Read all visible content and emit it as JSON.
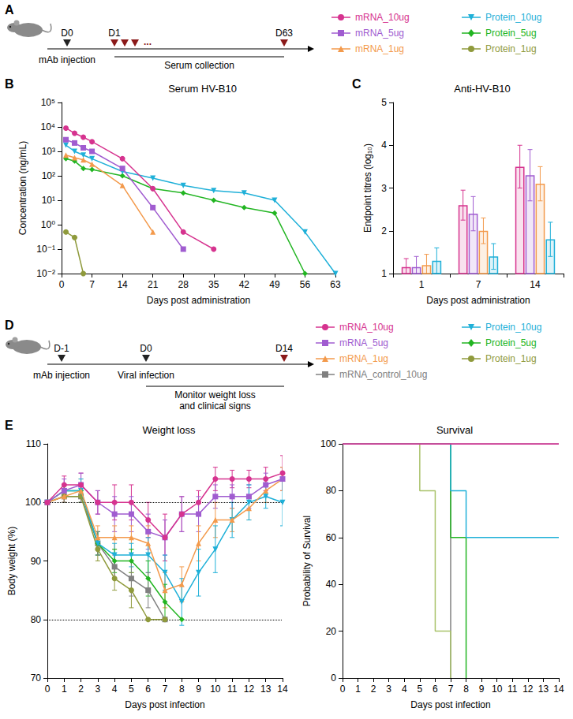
{
  "diagrams": [
    {
      "panel": "A",
      "events": [
        {
          "label": "D0",
          "text": "mAb injection"
        }
      ],
      "marks": [
        "D1",
        "D63"
      ],
      "ellipsis": "...",
      "span_label": "Serum collection",
      "key": [
        {
          "name": "mRNA_10ug",
          "color": "#d6338f",
          "marker": "circle"
        },
        {
          "name": "mRNA_5ug",
          "color": "#a05cd0",
          "marker": "square"
        },
        {
          "name": "mRNA_1ug",
          "color": "#f39a4c",
          "marker": "triangle"
        },
        {
          "name": "Protein_10ug",
          "color": "#1fb0d8",
          "marker": "triangle-down"
        },
        {
          "name": "Protein_5ug",
          "color": "#22b522",
          "marker": "diamond"
        },
        {
          "name": "Protein_1ug",
          "color": "#8f9a3c",
          "marker": "circle"
        }
      ]
    },
    {
      "panel": "D",
      "events": [
        {
          "label": "D-1",
          "text": "mAb injection"
        },
        {
          "label": "D0",
          "text": "Viral infection"
        }
      ],
      "end": "D14",
      "span_label": "Monitor weight loss and clinical signs",
      "key": [
        {
          "name": "mRNA_10ug",
          "color": "#d6338f",
          "marker": "circle"
        },
        {
          "name": "mRNA_5ug",
          "color": "#a05cd0",
          "marker": "square"
        },
        {
          "name": "mRNA_1ug",
          "color": "#f39a4c",
          "marker": "triangle"
        },
        {
          "name": "mRNA_control_10ug",
          "color": "#808080",
          "marker": "square"
        },
        {
          "name": "Protein_10ug",
          "color": "#1fb0d8",
          "marker": "triangle-down"
        },
        {
          "name": "Protein_5ug",
          "color": "#22b522",
          "marker": "diamond"
        },
        {
          "name": "Protein_1ug",
          "color": "#8f9a3c",
          "marker": "circle"
        }
      ]
    }
  ],
  "chart_data": [
    {
      "panel": "B",
      "type": "line",
      "title": "Serum HV-B10",
      "x_label": "Days post administration",
      "y_label": "Concentration (ng/mL)",
      "log": "y",
      "grid": false,
      "x": [
        1,
        3,
        5,
        7,
        14,
        21,
        28,
        35,
        42,
        49,
        56,
        63
      ],
      "xlim": [
        0,
        63
      ],
      "xticks": [
        0,
        7,
        14,
        21,
        28,
        35,
        42,
        49,
        56,
        63
      ],
      "ylim": [
        0.01,
        100000
      ],
      "yticks": [
        {
          "value": 0.01,
          "label": "10⁻²"
        },
        {
          "value": 0.1,
          "label": "10⁻¹"
        },
        {
          "value": 1,
          "label": "10⁰"
        },
        {
          "value": 10,
          "label": "10¹"
        },
        {
          "value": 100,
          "label": "10²"
        },
        {
          "value": 1000,
          "label": "10³"
        },
        {
          "value": 10000,
          "label": "10⁴"
        },
        {
          "value": 100000,
          "label": "10⁵"
        }
      ],
      "series": [
        {
          "name": "mRNA_10ug",
          "color": "#d6338f",
          "marker": "circle",
          "values": [
            9000,
            5500,
            3800,
            2500,
            500,
            30,
            0.5,
            0.1,
            null,
            null,
            null,
            null
          ]
        },
        {
          "name": "mRNA_5ug",
          "color": "#a05cd0",
          "marker": "square",
          "values": [
            3000,
            2200,
            1400,
            1000,
            200,
            5,
            0.1,
            null,
            null,
            null,
            null,
            null
          ]
        },
        {
          "name": "mRNA_1ug",
          "color": "#f39a4c",
          "marker": "triangle",
          "values": [
            700,
            550,
            450,
            300,
            40,
            0.5,
            null,
            null,
            null,
            null,
            null,
            null
          ]
        },
        {
          "name": "Protein_10ug",
          "color": "#1fb0d8",
          "marker": "triangle-down",
          "values": [
            1800,
            1000,
            700,
            500,
            150,
            80,
            40,
            25,
            20,
            10,
            0.5,
            0.01
          ]
        },
        {
          "name": "Protein_5ug",
          "color": "#22b522",
          "marker": "diamond",
          "values": [
            500,
            400,
            200,
            180,
            100,
            30,
            20,
            10,
            5,
            3,
            0.01,
            null
          ]
        },
        {
          "name": "Protein_1ug",
          "color": "#8f9a3c",
          "marker": "circle",
          "values": [
            0.5,
            0.3,
            0.01,
            null,
            null,
            null,
            null,
            null,
            null,
            null,
            null,
            null
          ]
        }
      ]
    },
    {
      "panel": "C",
      "type": "bar",
      "title": "Anti-HV-B10",
      "x_label": "Days post administration",
      "y_label": "Endpoint titres (log₁₀)",
      "grid": false,
      "categories": [
        "1",
        "7",
        "14"
      ],
      "ylim": [
        1,
        5
      ],
      "yticks": [
        1,
        2,
        3,
        4,
        5
      ],
      "series": [
        {
          "name": "mRNA_10ug",
          "color": "#d6338f",
          "values": [
            1.15,
            2.6,
            3.5
          ],
          "error": [
            0.2,
            0.35,
            0.5
          ]
        },
        {
          "name": "mRNA_5ug",
          "color": "#a05cd0",
          "values": [
            1.15,
            2.4,
            3.3
          ],
          "error": [
            0.25,
            0.4,
            0.6
          ]
        },
        {
          "name": "mRNA_1ug",
          "color": "#f39a4c",
          "values": [
            1.2,
            2.0,
            3.1
          ],
          "error": [
            0.25,
            0.3,
            0.4
          ]
        },
        {
          "name": "Protein_10ug",
          "color": "#1fb0d8",
          "values": [
            1.3,
            1.4,
            1.8
          ],
          "error": [
            0.3,
            0.3,
            0.4
          ]
        }
      ]
    },
    {
      "panel": "E",
      "type": "line",
      "title": "Weight loss",
      "x_label": "Days post infection",
      "y_label": "Body weight (%)",
      "grid": false,
      "x": [
        0,
        1,
        2,
        3,
        4,
        5,
        6,
        7,
        8,
        9,
        10,
        11,
        12,
        13,
        14
      ],
      "xlim": [
        0,
        14
      ],
      "xticks": [
        0,
        1,
        2,
        3,
        4,
        5,
        6,
        7,
        8,
        9,
        10,
        11,
        12,
        13,
        14
      ],
      "ylim": [
        70,
        110
      ],
      "yticks": [
        70,
        80,
        90,
        100,
        110
      ],
      "reference_lines": [
        80,
        100
      ],
      "series": [
        {
          "name": "mRNA_10ug",
          "color": "#d6338f",
          "marker": "circle",
          "values": [
            100,
            103,
            103,
            100,
            100,
            100,
            97,
            94,
            98,
            100,
            104,
            104,
            104,
            104,
            105
          ],
          "error": [
            0,
            1.5,
            2,
            2,
            3,
            3,
            3,
            4,
            3,
            2,
            2,
            1.5,
            1.5,
            2,
            3
          ]
        },
        {
          "name": "mRNA_5ug",
          "color": "#a05cd0",
          "marker": "square",
          "values": [
            100,
            102,
            103,
            100,
            98,
            98,
            95,
            94,
            98,
            98,
            101,
            101,
            101,
            103,
            104
          ],
          "error": [
            0,
            2,
            2,
            2,
            3,
            3,
            3,
            3,
            3,
            3,
            2,
            2,
            2,
            2,
            2
          ]
        },
        {
          "name": "mRNA_1ug",
          "color": "#f39a4c",
          "marker": "triangle",
          "values": [
            100,
            101,
            102,
            94,
            94,
            94,
            93,
            85,
            86,
            93,
            97,
            97,
            99,
            102,
            104
          ],
          "error": [
            0,
            1,
            2,
            2,
            2,
            2,
            3,
            3,
            3,
            3,
            3,
            2,
            2,
            2,
            2
          ]
        },
        {
          "name": "Protein_10ug",
          "color": "#1fb0d8",
          "marker": "triangle-down",
          "values": [
            100,
            102,
            102,
            93,
            91,
            91,
            91,
            88,
            83,
            88,
            92,
            97,
            100,
            101,
            100
          ],
          "error": [
            0,
            1,
            2,
            2,
            2,
            2,
            3,
            3,
            4,
            4,
            4,
            3,
            3,
            2,
            4
          ]
        },
        {
          "name": "Protein_5ug",
          "color": "#22b522",
          "marker": "diamond",
          "values": [
            100,
            102,
            102,
            93,
            90,
            90,
            87,
            83,
            80,
            null,
            null,
            null,
            null,
            null,
            null
          ],
          "error": [
            0,
            1,
            1,
            2,
            2,
            2,
            3,
            3,
            0,
            null,
            null,
            null,
            null,
            null,
            null
          ]
        },
        {
          "name": "Protein_1ug",
          "color": "#8f9a3c",
          "marker": "circle",
          "values": [
            100,
            101,
            101,
            92,
            87,
            85,
            80,
            80,
            null,
            null,
            null,
            null,
            null,
            null,
            null
          ],
          "error": [
            0,
            1,
            1,
            2,
            2,
            3,
            0,
            0,
            null,
            null,
            null,
            null,
            null,
            null,
            null
          ]
        },
        {
          "name": "mRNA_control_10ug",
          "color": "#808080",
          "marker": "square",
          "values": [
            100,
            101,
            101,
            93,
            89,
            87,
            85,
            80,
            null,
            null,
            null,
            null,
            null,
            null,
            null
          ],
          "error": [
            0,
            1,
            1,
            2,
            2,
            3,
            3,
            0,
            null,
            null,
            null,
            null,
            null,
            null,
            null
          ]
        }
      ]
    },
    {
      "type": "line",
      "title": "Survival",
      "x_label": "Days post infection",
      "y_label": "Probability of Survival",
      "grid": false,
      "line_style": "step",
      "xlim": [
        0,
        14
      ],
      "xticks": [
        0,
        1,
        2,
        3,
        4,
        5,
        6,
        7,
        8,
        9,
        10,
        11,
        12,
        13,
        14
      ],
      "ylim": [
        0,
        100
      ],
      "yticks": [
        0,
        20,
        40,
        60,
        80,
        100
      ],
      "series": [
        {
          "name": "mRNA_10ug",
          "color": "#d6338f",
          "x": [
            0,
            14
          ],
          "values": [
            100,
            100
          ]
        },
        {
          "name": "mRNA_5ug",
          "color": "#a05cd0",
          "x": [
            0,
            14
          ],
          "values": [
            100,
            100
          ]
        },
        {
          "name": "mRNA_1ug",
          "color": "#f39a4c",
          "x": [
            0,
            14
          ],
          "values": [
            100,
            100
          ]
        },
        {
          "name": "Protein_10ug",
          "color": "#1fb0d8",
          "x": [
            0,
            7,
            8,
            14
          ],
          "values": [
            100,
            80,
            60,
            60
          ]
        },
        {
          "name": "Protein_5ug",
          "color": "#22b522",
          "x": [
            0,
            7,
            8
          ],
          "values": [
            100,
            60,
            0
          ]
        },
        {
          "name": "Protein_1ug",
          "color": "#a9c26a",
          "x": [
            0,
            5,
            6,
            7
          ],
          "values": [
            100,
            80,
            20,
            0
          ]
        },
        {
          "name": "mRNA_control_10ug",
          "color": "#808080",
          "x": [
            0,
            7
          ],
          "values": [
            100,
            0
          ]
        }
      ]
    }
  ]
}
